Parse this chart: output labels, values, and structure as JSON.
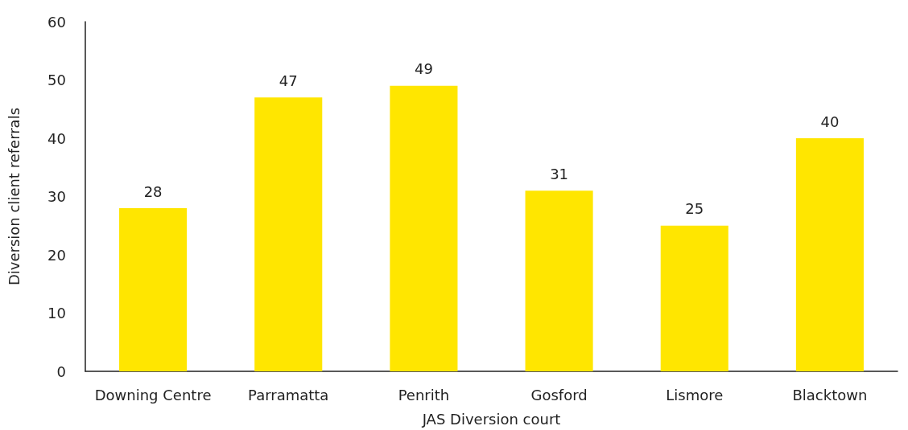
{
  "chart_data": {
    "type": "bar",
    "xlabel": "JAS Diversion court",
    "ylabel": "Diversion client referrals",
    "categories": [
      "Downing Centre",
      "Parramatta",
      "Penrith",
      "Gosford",
      "Lismore",
      "Blacktown"
    ],
    "values": [
      28,
      47,
      49,
      31,
      25,
      40
    ],
    "color": "#ffe600",
    "ylim": [
      0,
      60
    ],
    "yticks": [
      0,
      10,
      20,
      30,
      40,
      50,
      60
    ],
    "grid": false,
    "data_labels": true
  }
}
